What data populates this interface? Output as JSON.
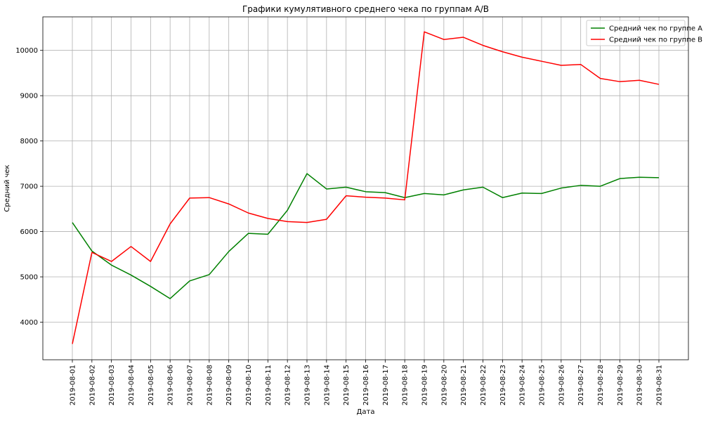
{
  "chart_data": {
    "type": "line",
    "title": "Графики кумулятивного среднего чека по группам A/B",
    "xlabel": "Дата",
    "ylabel": "Средний чек",
    "grid": true,
    "legend_position": "top-right",
    "ylim": [
      3170,
      10740
    ],
    "yticks": [
      4000,
      5000,
      6000,
      7000,
      8000,
      9000,
      10000
    ],
    "categories": [
      "2019-08-01",
      "2019-08-02",
      "2019-08-03",
      "2019-08-04",
      "2019-08-05",
      "2019-08-06",
      "2019-08-07",
      "2019-08-08",
      "2019-08-09",
      "2019-08-10",
      "2019-08-11",
      "2019-08-12",
      "2019-08-13",
      "2019-08-14",
      "2019-08-15",
      "2019-08-16",
      "2019-08-17",
      "2019-08-18",
      "2019-08-19",
      "2019-08-20",
      "2019-08-21",
      "2019-08-22",
      "2019-08-23",
      "2019-08-24",
      "2019-08-25",
      "2019-08-26",
      "2019-08-27",
      "2019-08-28",
      "2019-08-29",
      "2019-08-30",
      "2019-08-31"
    ],
    "series": [
      {
        "name": "Средний чек по группе A",
        "color": "#008000",
        "values": [
          6200,
          5570,
          5260,
          5040,
          4790,
          4520,
          4910,
          5050,
          5560,
          5960,
          5940,
          6470,
          7280,
          6940,
          6980,
          6880,
          6860,
          6750,
          6840,
          6810,
          6920,
          6980,
          6750,
          6850,
          6840,
          6960,
          7020,
          7000,
          7170,
          7200,
          7190
        ]
      },
      {
        "name": "Средний чек по группе B",
        "color": "#ff0000",
        "values": [
          3520,
          5540,
          5340,
          5670,
          5340,
          6170,
          6740,
          6750,
          6610,
          6410,
          6290,
          6220,
          6200,
          6270,
          6790,
          6760,
          6740,
          6700,
          10410,
          10240,
          10290,
          10110,
          9970,
          9850,
          9760,
          9670,
          9690,
          9380,
          9310,
          9340,
          9250
        ]
      }
    ]
  }
}
